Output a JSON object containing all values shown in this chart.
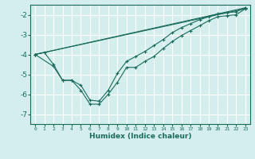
{
  "xlabel": "Humidex (Indice chaleur)",
  "background_color": "#d4eeee",
  "grid_color": "#ffffff",
  "line_color": "#1a6b5a",
  "xlim": [
    -0.5,
    23.5
  ],
  "ylim": [
    -7.5,
    -1.5
  ],
  "xticks": [
    0,
    1,
    2,
    3,
    4,
    5,
    6,
    7,
    8,
    9,
    10,
    11,
    12,
    13,
    14,
    15,
    16,
    17,
    18,
    19,
    20,
    21,
    22,
    23
  ],
  "yticks": [
    -7,
    -6,
    -5,
    -4,
    -3,
    -2
  ],
  "lines": [
    {
      "x": [
        0,
        1,
        2,
        3,
        4,
        5,
        6,
        7,
        8,
        9,
        10,
        11,
        12,
        13,
        14,
        15,
        16,
        17,
        18,
        19,
        20,
        21,
        22,
        23
      ],
      "y": [
        -4.0,
        -3.9,
        -4.5,
        -5.3,
        -5.3,
        -5.8,
        -6.5,
        -6.5,
        -6.0,
        -5.4,
        -4.65,
        -4.65,
        -4.35,
        -4.1,
        -3.7,
        -3.35,
        -3.05,
        -2.8,
        -2.55,
        -2.3,
        -2.1,
        -2.05,
        -2.0,
        -1.7
      ]
    },
    {
      "x": [
        0,
        2,
        3,
        4,
        5,
        6,
        7,
        8,
        9,
        10,
        11,
        12,
        13,
        14,
        15,
        16,
        17,
        18,
        19,
        20,
        21,
        22,
        23
      ],
      "y": [
        -4.0,
        -4.6,
        -5.3,
        -5.3,
        -5.55,
        -6.3,
        -6.35,
        -5.8,
        -4.95,
        -4.35,
        -4.1,
        -3.85,
        -3.55,
        -3.25,
        -2.9,
        -2.65,
        -2.45,
        -2.25,
        -2.1,
        -1.95,
        -1.9,
        -1.85,
        -1.65
      ]
    },
    {
      "x": [
        0,
        23
      ],
      "y": [
        -4.0,
        -1.65
      ]
    },
    {
      "x": [
        0,
        23
      ],
      "y": [
        -4.0,
        -1.7
      ]
    }
  ]
}
